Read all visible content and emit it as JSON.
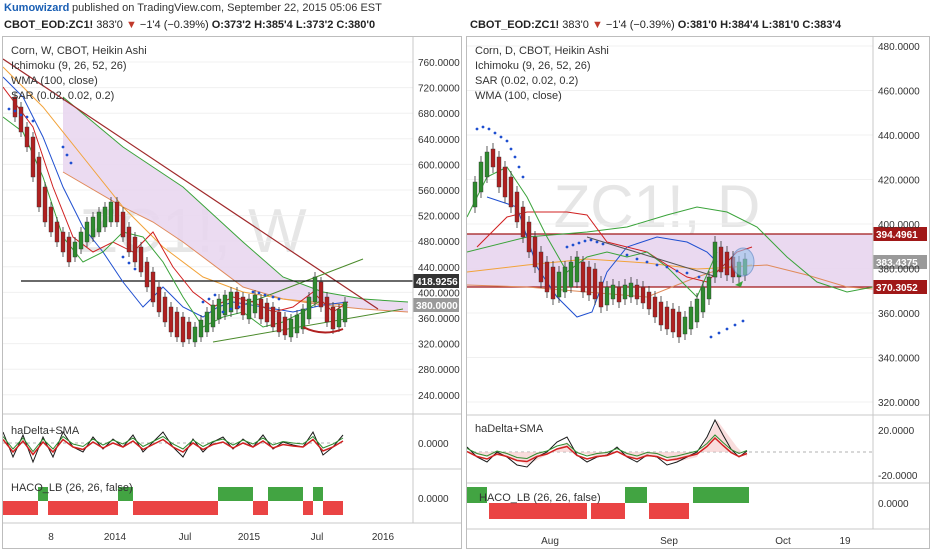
{
  "header": {
    "author": "Kumowizard",
    "published": "published on TradingView.com, September 22, 2015 05:06 EST"
  },
  "left": {
    "symbol": "CBOT_EOD:ZC1!",
    "last": "383'0",
    "change": "−1'4 (−0.39%)",
    "open": "O:373'2",
    "high": "H:385'4",
    "low": "L:373'2",
    "close": "C:380'0",
    "title": "Corn, W, CBOT, Heikin Ashi",
    "indicators": [
      "Ichimoku (9, 26, 52, 26)",
      "WMA (100, close)",
      "SAR (0.02, 0.02, 0.2)"
    ],
    "watermark": "ZC1!, W",
    "price_ticks": [
      "760.0000",
      "720.0000",
      "680.0000",
      "640.0000",
      "600.0000",
      "560.0000",
      "520.0000",
      "480.0000",
      "440.0000",
      "400.0000",
      "360.0000",
      "320.0000",
      "280.0000",
      "240.0000"
    ],
    "tag_a": "418.9256",
    "tag_b": "380.0000",
    "osc_title": "haDelta+SMA",
    "osc_tick": "0.0000",
    "haco_title": "HACO_LB (26, 26, false)",
    "haco_tick": "0.0000",
    "time_labels": [
      "8",
      "2014",
      "Jul",
      "2015",
      "Jul",
      "2016"
    ]
  },
  "right": {
    "symbol": "CBOT_EOD:ZC1!",
    "last": "383'0",
    "change": "−1'4 (−0.39%)",
    "open": "O:381'0",
    "high": "H:384'4",
    "low": "L:381'0",
    "close": "C:383'4",
    "title": "Corn, D, CBOT, Heikin Ashi",
    "indicators": [
      "Ichimoku (9, 26, 52, 26)",
      "SAR (0.02, 0.02, 0.2)",
      "WMA (100, close)"
    ],
    "watermark": "ZC1!, D",
    "price_ticks": [
      "480.0000",
      "460.0000",
      "440.0000",
      "420.0000",
      "400.0000",
      "380.0000",
      "360.0000",
      "340.0000",
      "320.0000"
    ],
    "tag_a": "394.4961",
    "tag_b": "383.4375",
    "tag_c": "370.3052",
    "osc_title": "haDelta+SMA",
    "osc_ticks": [
      "20.0000",
      "-20.0000"
    ],
    "haco_title": "HACO_LB (26, 26, false)",
    "haco_tick": "0.0000",
    "time_labels": [
      "Aug",
      "Sep",
      "Oct",
      "19"
    ]
  },
  "colors": {
    "up": "#2e8b2e",
    "down": "#b02020",
    "tenkan": "#d02020",
    "kijun": "#1f4fd0",
    "chikou": "#3aa33a",
    "wma": "#f2a33a",
    "cloud": "#e8d5ee",
    "tag_dark": "#333333",
    "tag_red": "#a01818",
    "tag_grey": "#9a9a9a"
  }
}
